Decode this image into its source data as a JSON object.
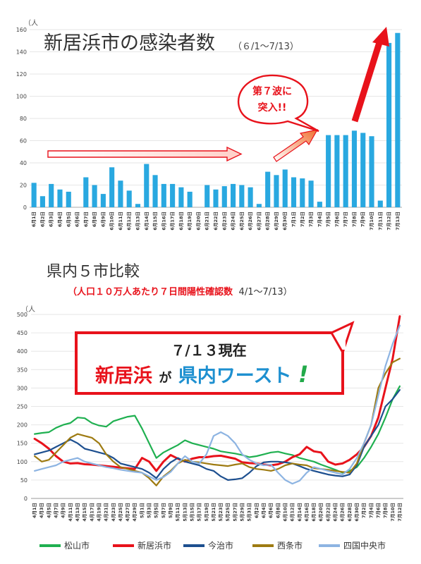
{
  "chart_data": [
    {
      "type": "bar",
      "title": "新居浜市の感染者数",
      "subtitle": "（６/1〜7/13）",
      "ylabel": "（人",
      "ylim": [
        0,
        160
      ],
      "yticks": [
        0,
        20,
        40,
        60,
        80,
        100,
        120,
        140,
        160
      ],
      "bar_color": "#29a8e0",
      "categories": [
        "6月1日",
        "6月2日",
        "6月3日",
        "6月4日",
        "6月5日",
        "6月6日",
        "6月7日",
        "6月8日",
        "6月9日",
        "6月10日",
        "6月11日",
        "6月12日",
        "6月13日",
        "6月14日",
        "6月15日",
        "6月16日",
        "6月17日",
        "6月18日",
        "6月19日",
        "6月20日",
        "6月21日",
        "6月22日",
        "6月23日",
        "6月24日",
        "6月25日",
        "6月26日",
        "6月27日",
        "6月28日",
        "6月29日",
        "6月30日",
        "7月1日",
        "7月2日",
        "7月3日",
        "7月4日",
        "7月5日",
        "7月6日",
        "7月7日",
        "7月8日",
        "7月9日",
        "7月10日",
        "7月11日",
        "7月12日",
        "7月13日"
      ],
      "values": [
        22,
        10,
        21,
        16,
        14,
        0,
        27,
        20,
        12,
        36,
        24,
        15,
        3,
        39,
        29,
        21,
        21,
        18,
        14,
        0,
        20,
        16,
        19,
        21,
        20,
        18,
        3,
        32,
        29,
        34,
        27,
        26,
        24,
        5,
        65,
        65,
        65,
        69,
        67,
        64,
        6,
        148,
        157
      ],
      "annotation": {
        "line1": "第７波に",
        "line2": "突入!!"
      }
    },
    {
      "type": "line",
      "title": "県内５市比較",
      "subtitle_main": "（人口１０万人あたり７日間陽性確認数",
      "subtitle_range": "4/1〜7/13）",
      "ylabel": "（人",
      "ylim": [
        0,
        500
      ],
      "yticks": [
        0,
        50,
        100,
        150,
        200,
        250,
        300,
        350,
        400,
        450,
        500
      ],
      "x": [
        "4月1日",
        "4月3日",
        "4月5日",
        "4月7日",
        "4月9日",
        "4月11日",
        "4月13日",
        "4月15日",
        "4月17日",
        "4月19日",
        "4月21日",
        "4月23日",
        "4月25日",
        "4月27日",
        "4月29日",
        "5月1日",
        "5月3日",
        "5月5日",
        "5月7日",
        "5月9日",
        "5月11日",
        "5月13日",
        "5月15日",
        "5月17日",
        "5月19日",
        "5月21日",
        "5月23日",
        "5月25日",
        "5月27日",
        "5月29日",
        "5月31日",
        "6月2日",
        "6月4日",
        "6月6日",
        "6月8日",
        "6月10日",
        "6月12日",
        "6月14日",
        "6月16日",
        "6月18日",
        "6月20日",
        "6月22日",
        "6月24日",
        "6月26日",
        "6月28日",
        "6月30日",
        "7月2日",
        "7月4日",
        "7月6日",
        "7月8日",
        "7月10日",
        "7月12日"
      ],
      "series": [
        {
          "name": "松山市",
          "color": "#1fb050",
          "width": 2.2,
          "values": [
            175,
            178,
            180,
            192,
            200,
            205,
            220,
            218,
            205,
            198,
            195,
            210,
            216,
            222,
            225,
            190,
            150,
            110,
            125,
            135,
            145,
            158,
            150,
            145,
            140,
            135,
            128,
            125,
            122,
            118,
            112,
            115,
            120,
            125,
            127,
            122,
            118,
            110,
            105,
            100,
            92,
            85,
            78,
            70,
            75,
            85,
            110,
            140,
            175,
            220,
            270,
            305
          ]
        },
        {
          "name": "新居浜市",
          "color": "#e8121b",
          "width": 3,
          "values": [
            162,
            150,
            135,
            115,
            100,
            95,
            96,
            93,
            92,
            90,
            88,
            86,
            84,
            82,
            80,
            110,
            100,
            75,
            100,
            118,
            108,
            100,
            108,
            112,
            112,
            115,
            116,
            112,
            108,
            98,
            96,
            95,
            92,
            90,
            93,
            100,
            112,
            120,
            140,
            128,
            125,
            100,
            92,
            95,
            105,
            120,
            140,
            170,
            220,
            300,
            380,
            495
          ]
        },
        {
          "name": "今治市",
          "color": "#1d4f8f",
          "width": 2.2,
          "values": [
            120,
            125,
            130,
            140,
            150,
            160,
            150,
            135,
            130,
            125,
            120,
            110,
            95,
            90,
            85,
            80,
            70,
            55,
            80,
            98,
            110,
            100,
            95,
            90,
            80,
            75,
            60,
            50,
            52,
            55,
            70,
            88,
            98,
            100,
            100,
            98,
            95,
            88,
            80,
            75,
            70,
            65,
            62,
            60,
            65,
            90,
            140,
            170,
            200,
            250,
            270,
            295
          ]
        },
        {
          "name": "西条市",
          "color": "#9e7b12",
          "width": 2.2,
          "values": [
            115,
            100,
            105,
            125,
            145,
            165,
            175,
            170,
            165,
            150,
            120,
            100,
            85,
            80,
            75,
            70,
            55,
            35,
            60,
            75,
            95,
            105,
            100,
            98,
            95,
            92,
            90,
            88,
            92,
            95,
            85,
            80,
            78,
            75,
            80,
            90,
            95,
            92,
            90,
            82,
            80,
            78,
            75,
            72,
            70,
            95,
            150,
            200,
            300,
            340,
            370,
            380
          ]
        },
        {
          "name": "四国中央市",
          "color": "#8db4e2",
          "width": 2.2,
          "values": [
            75,
            80,
            85,
            90,
            100,
            105,
            110,
            100,
            95,
            90,
            85,
            82,
            78,
            75,
            72,
            70,
            60,
            50,
            58,
            72,
            95,
            115,
            100,
            95,
            120,
            170,
            180,
            170,
            150,
            120,
            105,
            95,
            90,
            92,
            70,
            50,
            40,
            48,
            70,
            85,
            80,
            75,
            70,
            65,
            80,
            110,
            150,
            200,
            280,
            360,
            420,
            470
          ]
        }
      ],
      "callout": {
        "line1": "７/１３現在",
        "red_text": "新居浜",
        "mid_text": "が",
        "blue_text": "県内ワースト",
        "mark": "!"
      }
    }
  ]
}
